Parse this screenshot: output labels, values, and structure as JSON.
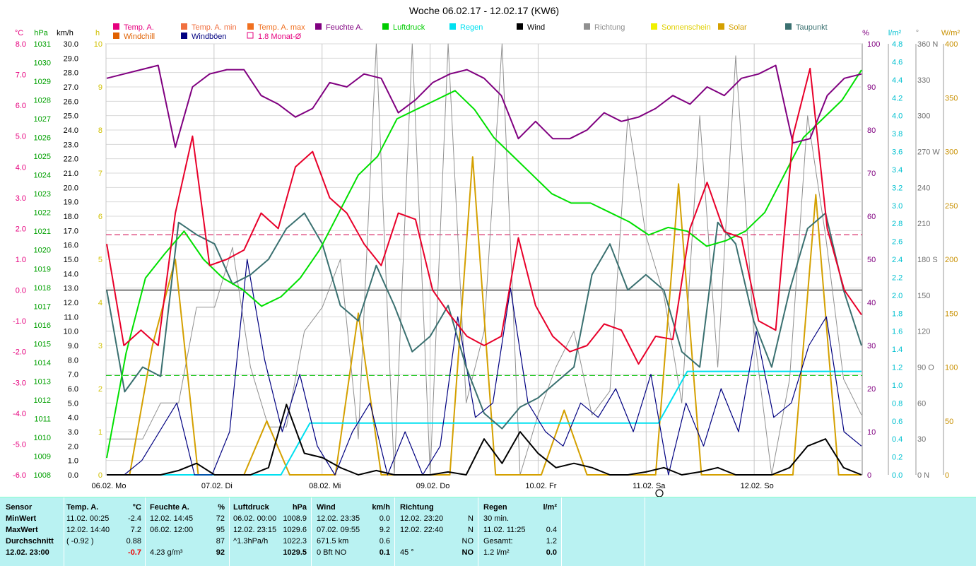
{
  "chart_data": {
    "type": "line",
    "title": "Woche 06.02.17 - 12.02.17 (KW6)",
    "legend_rows": [
      [
        {
          "name": "Temp. A.",
          "color": "#e6007e"
        },
        {
          "name": "Temp. A. min",
          "color": "#f07040"
        },
        {
          "name": "Temp. A. max",
          "color": "#f07020"
        },
        {
          "name": "Feuchte A.",
          "color": "#800080"
        },
        {
          "name": "Luftdruck",
          "color": "#00cc00"
        },
        {
          "name": "Regen",
          "color": "#00e0f0"
        },
        {
          "name": "Wind",
          "color": "#000000"
        },
        {
          "name": "Richtung",
          "color": "#909090"
        },
        {
          "name": "Sonnenschein",
          "color": "#f0f000"
        },
        {
          "name": "Solar",
          "color": "#d4a000"
        },
        {
          "name": "Taupunkt",
          "color": "#3a7070"
        }
      ],
      [
        {
          "name": "Windchill",
          "color": "#e06000"
        },
        {
          "name": "Windböen",
          "color": "#000080"
        },
        {
          "name": "1.8 Monat-Ø",
          "color": "#e6007e",
          "hollow": true
        }
      ]
    ],
    "axis_units": {
      "temp": "°C",
      "pressure": "hPa",
      "wind": "km/h",
      "sun": "h",
      "humidity": "%",
      "rain": "l/m²",
      "direction": "°",
      "solar": "W/m²"
    },
    "temp_ticks": [
      "8.0",
      "7.0",
      "6.0",
      "5.0",
      "4.0",
      "3.0",
      "2.0",
      "1.0",
      "0.0",
      "-1.0",
      "-2.0",
      "-3.0",
      "-4.0",
      "-5.0",
      "-6.0"
    ],
    "pressure_ticks": [
      "1031",
      "1030",
      "1029",
      "1028",
      "1027",
      "1026",
      "1025",
      "1024",
      "1023",
      "1022",
      "1021",
      "1020",
      "1019",
      "1018",
      "1017",
      "1016",
      "1015",
      "1014",
      "1013",
      "1012",
      "1011",
      "1010",
      "1009",
      "1008"
    ],
    "wind_ticks": [
      "30.0",
      "29.0",
      "28.0",
      "27.0",
      "26.0",
      "25.0",
      "24.0",
      "23.0",
      "22.0",
      "21.0",
      "20.0",
      "19.0",
      "18.0",
      "17.0",
      "16.0",
      "15.0",
      "14.0",
      "13.0",
      "12.0",
      "11.0",
      "10.0",
      "9.0",
      "8.0",
      "7.0",
      "6.0",
      "5.0",
      "4.0",
      "3.0",
      "2.0",
      "1.0",
      "0.0"
    ],
    "sun_ticks": [
      "10",
      "9",
      "8",
      "7",
      "6",
      "5",
      "4",
      "3",
      "2",
      "1",
      "0"
    ],
    "humidity_ticks": [
      "100",
      "90",
      "80",
      "70",
      "60",
      "50",
      "40",
      "30",
      "20",
      "10",
      "0"
    ],
    "rain_ticks": [
      "4.8",
      "4.6",
      "4.4",
      "4.2",
      "4.0",
      "3.8",
      "3.6",
      "3.4",
      "3.2",
      "3.0",
      "2.8",
      "2.6",
      "2.4",
      "2.2",
      "2.0",
      "1.8",
      "1.6",
      "1.4",
      "1.2",
      "1.0",
      "0.8",
      "0.6",
      "0.4",
      "0.2",
      "0.0"
    ],
    "direction_ticks": [
      "360 N",
      "330",
      "300",
      "270 W",
      "240",
      "210",
      "180 S",
      "150",
      "120",
      "90 O",
      "60",
      "30",
      "0 N"
    ],
    "solar_ticks": [
      "400",
      "350",
      "300",
      "250",
      "200",
      "150",
      "100",
      "50",
      "0"
    ],
    "day_labels": [
      "06.02. Mo",
      "07.02. Di",
      "08.02. Mi",
      "09.02. Do",
      "10.02. Fr",
      "11.02. Sa",
      "12.02. So"
    ],
    "series": [
      {
        "name": "Luftdruck",
        "unit": "hPa",
        "color": "#00e000",
        "values": [
          1008.9,
          1014.5,
          1018.5,
          1019.8,
          1021.0,
          1019.5,
          1018.5,
          1017.9,
          1017.0,
          1017.5,
          1018.5,
          1020.0,
          1022.0,
          1024.0,
          1025.0,
          1027.0,
          1027.5,
          1028.0,
          1028.5,
          1027.5,
          1026.0,
          1025.0,
          1024.0,
          1023.0,
          1022.5,
          1022.5,
          1022.0,
          1021.5,
          1020.8,
          1021.2,
          1021.0,
          1020.2,
          1020.5,
          1021.0,
          1022.0,
          1024.0,
          1026.0,
          1027.0,
          1028.0,
          1029.6
        ]
      },
      {
        "name": "Feuchte A.",
        "unit": "%",
        "color": "#800080",
        "values": [
          92,
          93,
          94,
          95,
          76,
          90,
          93,
          94,
          94,
          88,
          86,
          83,
          85,
          91,
          90,
          93,
          92,
          84,
          87,
          91,
          93,
          94,
          92,
          88,
          78,
          82,
          78,
          78,
          80,
          84,
          82,
          83,
          85,
          88,
          86,
          90,
          88,
          92,
          93,
          95,
          77,
          78,
          88,
          92,
          93
        ]
      },
      {
        "name": "Temp. A.",
        "unit": "°C",
        "color": "#e8002a",
        "values": [
          1.5,
          -1.8,
          -1.3,
          -1.8,
          2.5,
          5.0,
          0.8,
          1.0,
          1.3,
          2.5,
          2.0,
          4.0,
          4.5,
          3.0,
          2.5,
          1.5,
          0.8,
          2.5,
          2.3,
          0.0,
          -0.8,
          -1.5,
          -1.8,
          -1.5,
          1.7,
          -0.5,
          -1.5,
          -2.0,
          -1.8,
          -1.1,
          -1.3,
          -2.4,
          -1.5,
          -1.6,
          2.0,
          3.5,
          1.9,
          1.7,
          -1.0,
          -1.3,
          5.0,
          7.2,
          2.0,
          0.0,
          -0.8
        ]
      },
      {
        "name": "Taupunkt",
        "unit": "°C",
        "color": "#3a7070",
        "values": [
          0.0,
          -3.3,
          -2.5,
          -2.8,
          2.2,
          1.8,
          1.5,
          0.2,
          0.5,
          1.0,
          2.0,
          2.5,
          1.5,
          -0.5,
          -1.0,
          0.8,
          -0.5,
          -2.0,
          -1.5,
          -0.5,
          -2.5,
          -4.0,
          -4.5,
          -3.8,
          -3.5,
          -3.0,
          -2.5,
          0.5,
          1.5,
          0.0,
          0.5,
          0.0,
          -2.0,
          -2.5,
          2.2,
          1.5,
          -1.0,
          -2.5,
          0.0,
          2.0,
          2.5,
          0.0,
          -1.8
        ]
      },
      {
        "name": "Windböen",
        "unit": "km/h",
        "color": "#000080",
        "values": [
          0,
          0,
          1,
          3,
          5,
          0,
          0,
          3,
          15,
          8,
          3,
          7,
          2,
          0,
          3,
          5,
          0,
          3,
          0,
          2,
          11,
          4,
          5,
          13,
          5,
          3,
          2,
          5,
          4,
          6,
          3,
          7,
          0,
          5,
          2,
          6,
          3,
          10,
          4,
          5,
          9,
          11,
          3,
          2
        ]
      },
      {
        "name": "Wind",
        "unit": "km/h",
        "color": "#000000",
        "values": [
          0,
          0,
          0,
          0,
          0.3,
          0.8,
          0,
          0,
          0,
          0.5,
          4.9,
          1.5,
          1.2,
          0.5,
          0,
          0.3,
          0,
          0,
          0,
          0.2,
          0,
          2.5,
          0.8,
          3,
          1.5,
          0.5,
          0.8,
          0.5,
          0,
          0,
          0.2,
          0.5,
          0,
          0.2,
          0.5,
          0,
          0,
          0,
          0.5,
          2,
          2.5,
          0.5,
          0
        ]
      },
      {
        "name": "Solar",
        "unit": "W/m²",
        "color": "#d4a000",
        "values": [
          0,
          0,
          120,
          200,
          0,
          0,
          0,
          50,
          0,
          0,
          0,
          150,
          0,
          0,
          0,
          0,
          295,
          0,
          0,
          0,
          60,
          0,
          0,
          0,
          0,
          270,
          0,
          0,
          0,
          0,
          0,
          260,
          0,
          0
        ]
      },
      {
        "name": "Regen",
        "unit": "l/m²",
        "color": "#00e0f0",
        "values": [
          0,
          0,
          0,
          0,
          0,
          0,
          0,
          0.6,
          0.6,
          0.6,
          0.6,
          0.6,
          0.6,
          0.6,
          0.6,
          0.6,
          0.6,
          0.6,
          0.6,
          0.6,
          1.2,
          1.2,
          1.2,
          1.2,
          1.2,
          1.2,
          1.2
        ]
      },
      {
        "name": "Richtung",
        "unit": "°",
        "color": "#909090",
        "values": [
          30,
          30,
          30,
          60,
          60,
          140,
          140,
          190,
          90,
          40,
          40,
          120,
          140,
          180,
          30,
          360,
          0,
          360,
          0,
          360,
          60,
          120,
          360,
          0,
          50,
          90,
          120,
          50,
          70,
          300,
          200,
          150,
          60,
          300,
          90,
          350,
          120,
          0,
          80,
          300,
          200,
          80,
          50
        ]
      }
    ],
    "reference_lines": [
      {
        "name": "Temp. A. reference",
        "axis": "temp",
        "value": 0.0,
        "color": "#555555"
      },
      {
        "name": "1.8 Monat-Ø",
        "axis": "temp",
        "value": 1.8,
        "color": "#d0004a"
      },
      {
        "name": "Luftdruck reference",
        "axis": "pressure",
        "value": 1013.3,
        "color": "#00c000"
      }
    ]
  },
  "summary": {
    "sensor": {
      "header": "Sensor",
      "rows": [
        "MinWert",
        "MaxWert",
        "Durchschnitt",
        "12.02. 23:00"
      ]
    },
    "temp": {
      "header": "Temp. A.",
      "unit": "°C",
      "rows": [
        [
          "11.02.  00:25",
          "-2.4"
        ],
        [
          "12.02.  14:40",
          "7.2"
        ],
        [
          "( -0.92 )",
          "0.88"
        ],
        [
          "",
          "-0.7"
        ]
      ]
    },
    "feuchte": {
      "header": "Feuchte A.",
      "unit": "%",
      "rows": [
        [
          "12.02.  14:45",
          "72"
        ],
        [
          "06.02.  12:00",
          "95"
        ],
        [
          "",
          "87"
        ],
        [
          "4.23 g/m³",
          "92"
        ]
      ]
    },
    "luftdruck": {
      "header": "Luftdruck",
      "unit": "hPa",
      "rows": [
        [
          "06.02.  00:00",
          "1008.9"
        ],
        [
          "12.02.  23:15",
          "1029.6"
        ],
        [
          "^1.3hPa/h",
          "1022.3"
        ],
        [
          "",
          "1029.5"
        ]
      ]
    },
    "wind": {
      "header": "Wind",
      "unit": "km/h",
      "rows": [
        [
          "12.02.  23:35",
          "0.0"
        ],
        [
          "07.02.  09:55",
          "9.2"
        ],
        [
          "671.5 km",
          "0.6"
        ],
        [
          "0 Bft NO",
          "0.1"
        ]
      ]
    },
    "richtung": {
      "header": "Richtung",
      "unit": "",
      "rows": [
        [
          "12.02.  23:20",
          "N"
        ],
        [
          "12.02.  22:40",
          "N"
        ],
        [
          "",
          "NO"
        ],
        [
          "45 °",
          "NO"
        ]
      ]
    },
    "regen": {
      "header": "Regen",
      "unit": "l/m²",
      "rows": [
        [
          "30 min.",
          ""
        ],
        [
          "11.02.  11:25",
          "0.4"
        ],
        [
          "Gesamt:",
          "1.2"
        ],
        [
          "1.2 l/m²",
          "0.0"
        ]
      ]
    }
  }
}
